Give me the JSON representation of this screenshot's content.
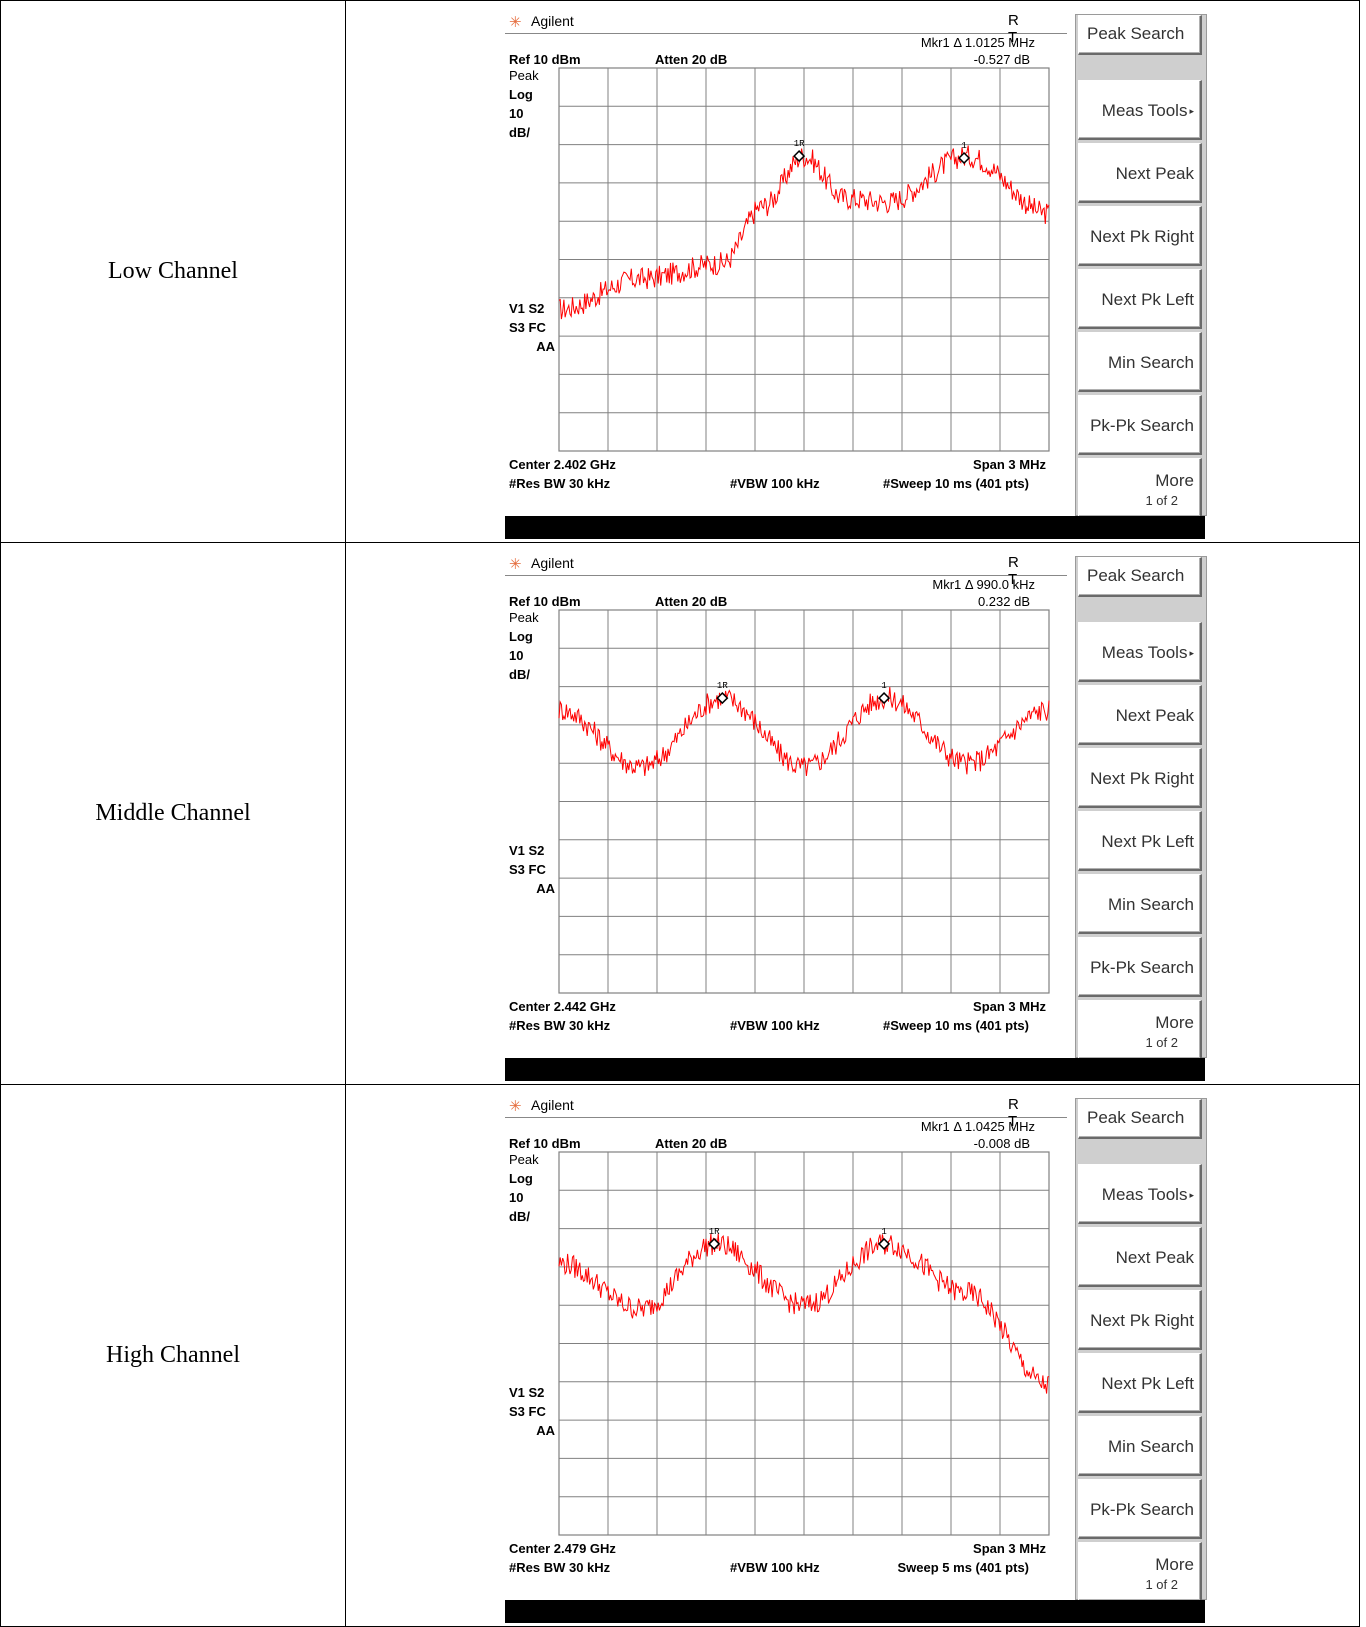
{
  "panels": [
    {
      "row_label": "Low Channel",
      "instrument": {
        "brand": "Agilent",
        "rt": "R T",
        "mkr_line": "Mkr1 Δ 1.0125 MHz",
        "mkr_value": "-0.527 dB",
        "ref": "Ref 10 dBm",
        "atten": "Atten 20 dB",
        "peak": "Peak",
        "log": "Log",
        "scale_num": "10",
        "scale_unit": "dB/",
        "flags1": "V1  S2",
        "flags2": "S3  FC",
        "flags3": "AA",
        "center": "Center 2.402 GHz",
        "span": "Span 3 MHz",
        "res_bw": "#Res BW 30 kHz",
        "vbw": "#VBW 100 kHz",
        "sweep": "#Sweep 10 ms (401 pts)",
        "marker_ref_label": "1R",
        "marker_label": "1"
      },
      "chart_data": {
        "type": "line",
        "x": [
          2400.5,
          2401.0,
          2401.5,
          2401.75,
          2402.0,
          2402.25,
          2402.5,
          2403.0,
          2403.5
        ],
        "y": [
          -53,
          -45,
          -41,
          -26,
          -13,
          -24,
          -25,
          -13,
          -28
        ],
        "markers": [
          {
            "label": "1R",
            "x": 2401.97,
            "y": -13
          },
          {
            "label": "1",
            "x": 2402.98,
            "y": -13.5
          }
        ],
        "ylim": [
          -90,
          10
        ],
        "xlim": [
          2400.5,
          2403.5
        ],
        "grid": true,
        "trace_color": "#ff0000"
      }
    },
    {
      "row_label": "Middle Channel",
      "instrument": {
        "brand": "Agilent",
        "rt": "R T",
        "mkr_line": "Mkr1 Δ 990.0 kHz",
        "mkr_value": "0.232 dB",
        "ref": "Ref 10 dBm",
        "atten": "Atten 20 dB",
        "peak": "Peak",
        "log": "Log",
        "scale_num": "10",
        "scale_unit": "dB/",
        "flags1": "V1  S2",
        "flags2": "S3  FC",
        "flags3": "AA",
        "center": "Center 2.442 GHz",
        "span": "Span 3 MHz",
        "res_bw": "#Res BW 30 kHz",
        "vbw": "#VBW 100 kHz",
        "sweep": "#Sweep 10 ms (401 pts)",
        "marker_ref_label": "1R",
        "marker_label": "1"
      },
      "chart_data": {
        "type": "line",
        "x": [
          2440.5,
          2441.0,
          2441.5,
          2442.0,
          2442.5,
          2443.0,
          2443.5
        ],
        "y": [
          -16,
          -31,
          -13,
          -31,
          -13,
          -30,
          -16
        ],
        "markers": [
          {
            "label": "1R",
            "x": 2441.5,
            "y": -13
          },
          {
            "label": "1",
            "x": 2442.49,
            "y": -13
          }
        ],
        "ylim": [
          -90,
          10
        ],
        "xlim": [
          2440.5,
          2443.5
        ],
        "grid": true,
        "trace_color": "#ff0000"
      }
    },
    {
      "row_label": "High Channel",
      "instrument": {
        "brand": "Agilent",
        "rt": "R T",
        "mkr_line": "Mkr1 Δ 1.0425 MHz",
        "mkr_value": "-0.008 dB",
        "ref": "Ref 10 dBm",
        "atten": "Atten 20 dB",
        "peak": "Peak",
        "log": "Log",
        "scale_num": "10",
        "scale_unit": "dB/",
        "flags1": "V1  S2",
        "flags2": "S3  FC",
        "flags3": "AA",
        "center": "Center 2.479 GHz",
        "span": "Span 3 MHz",
        "res_bw": "#Res BW 30 kHz",
        "vbw": "#VBW 100 kHz",
        "sweep": "Sweep 5 ms (401 pts)",
        "marker_ref_label": "1R",
        "marker_label": "1"
      },
      "chart_data": {
        "type": "line",
        "x": [
          2477.5,
          2478.0,
          2478.45,
          2479.0,
          2479.5,
          2480.0,
          2480.5
        ],
        "y": [
          -19,
          -31,
          -14,
          -30,
          -14,
          -27,
          -51
        ],
        "markers": [
          {
            "label": "1R",
            "x": 2478.45,
            "y": -14
          },
          {
            "label": "1",
            "x": 2479.49,
            "y": -14
          }
        ],
        "ylim": [
          -90,
          10
        ],
        "xlim": [
          2477.5,
          2480.5
        ],
        "grid": true,
        "trace_color": "#ff0000"
      }
    }
  ],
  "softkeys": {
    "peak_search": "Peak Search",
    "meas_tools": "Meas Tools",
    "next_peak": "Next Peak",
    "next_pk_right": "Next Pk Right",
    "next_pk_left": "Next Pk Left",
    "min_search": "Min Search",
    "pk_pk_search": "Pk-Pk Search",
    "more": "More",
    "more_page": "1 of 2"
  },
  "colors": {
    "trace": "#ff0000",
    "grid": "#808080",
    "statusbar": "#000000",
    "softkey_panel": "#cfcfcf"
  }
}
